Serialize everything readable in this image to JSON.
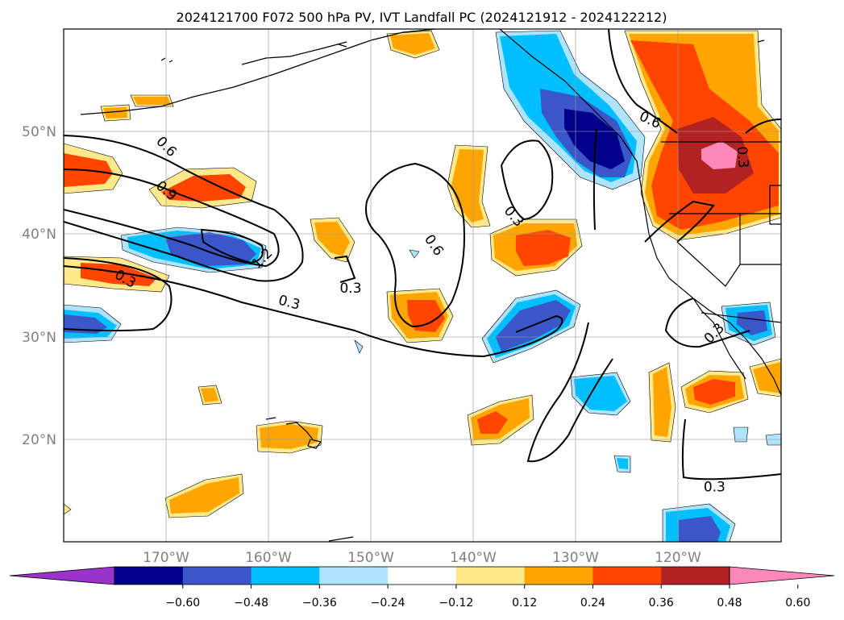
{
  "title": "2024121700 F072 500 hPa PV, IVT Landfall PC (2024121912 - 2024122212)",
  "axes": {
    "lon_ticks": [
      "170°W",
      "160°W",
      "150°W",
      "140°W",
      "130°W",
      "120°W"
    ],
    "lat_ticks": [
      "50°N",
      "40°N",
      "30°N",
      "20°N"
    ],
    "lon_values": [
      -170,
      -160,
      -150,
      -140,
      -130,
      -120
    ],
    "lat_values": [
      50,
      40,
      30,
      20
    ],
    "lon_range": [
      -180,
      -110
    ],
    "lat_range": [
      10,
      60
    ],
    "gridlines": true
  },
  "colorbar": {
    "tick_labels": [
      "−0.60",
      "−0.48",
      "−0.36",
      "−0.24",
      "−0.12",
      "0.12",
      "0.24",
      "0.36",
      "0.48",
      "0.60"
    ],
    "colors": [
      "#9933cc",
      "#00008b",
      "#3a56c8",
      "#00bfff",
      "#aee4ff",
      "#ffffff",
      "#ffe98a",
      "#ffa500",
      "#ff4500",
      "#b22222",
      "#ff88bb"
    ],
    "extend": "both"
  },
  "contour_labels": [
    {
      "text": "0.6",
      "lon": -170,
      "lat": 48.5,
      "angle": 45
    },
    {
      "text": "0.9",
      "lon": -170,
      "lat": 44.2,
      "angle": 40
    },
    {
      "text": "1.2",
      "lon": -160.6,
      "lat": 37.6,
      "angle": -45
    },
    {
      "text": "0.3",
      "lon": -174,
      "lat": 35.6,
      "angle": 30
    },
    {
      "text": "0.3",
      "lon": -158,
      "lat": 33.3,
      "angle": 15
    },
    {
      "text": "0.3",
      "lon": -152,
      "lat": 34.7,
      "angle": 0
    },
    {
      "text": "0.6",
      "lon": -143.9,
      "lat": 38.9,
      "angle": 55
    },
    {
      "text": "0.3",
      "lon": -136.1,
      "lat": 41.7,
      "angle": 50
    },
    {
      "text": "0.6",
      "lon": -122.8,
      "lat": 51.1,
      "angle": 25
    },
    {
      "text": "0.3",
      "lon": -113.8,
      "lat": 47.5,
      "angle": 85
    },
    {
      "text": "0.3",
      "lon": -116.5,
      "lat": 30.3,
      "angle": -45
    },
    {
      "text": "0.3",
      "lon": -116.5,
      "lat": 15.3,
      "angle": 0
    }
  ]
}
